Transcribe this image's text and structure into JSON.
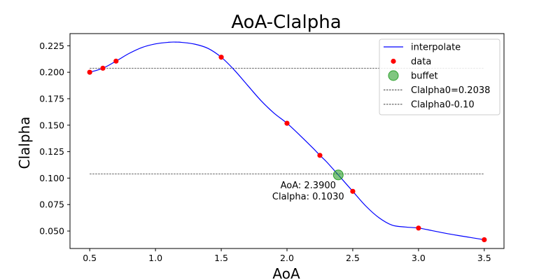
{
  "chart_data": {
    "type": "line",
    "title": "AoA-Clalpha",
    "xlabel": "AoA",
    "ylabel": "Clalpha",
    "xlim": [
      0.35,
      3.65
    ],
    "ylim": [
      0.0335,
      0.2365
    ],
    "x_ticks": [
      0.5,
      1.0,
      1.5,
      2.0,
      2.5,
      3.0,
      3.5
    ],
    "x_tick_labels": [
      "0.5",
      "1.0",
      "1.5",
      "2.0",
      "2.5",
      "3.0",
      "3.5"
    ],
    "y_ticks": [
      0.05,
      0.075,
      0.1,
      0.125,
      0.15,
      0.175,
      0.2,
      0.225
    ],
    "y_tick_labels": [
      "0.050",
      "0.075",
      "0.100",
      "0.125",
      "0.150",
      "0.175",
      "0.200",
      "0.225"
    ],
    "grid": false,
    "legend_position": "top-right",
    "series": [
      {
        "name": "interpolate",
        "kind": "line",
        "color": "#0000ff",
        "x": [
          0.5,
          0.6,
          0.7,
          0.8,
          0.9,
          1.0,
          1.1,
          1.15,
          1.2,
          1.3,
          1.4,
          1.5,
          1.6,
          1.7,
          1.8,
          1.9,
          2.0,
          2.1,
          2.2,
          2.25,
          2.3,
          2.39,
          2.5,
          2.6,
          2.7,
          2.8,
          2.9,
          3.0,
          3.1,
          3.2,
          3.3,
          3.4,
          3.5
        ],
        "y": [
          0.2,
          0.2038,
          0.2105,
          0.2178,
          0.2235,
          0.2268,
          0.2283,
          0.2285,
          0.2282,
          0.2265,
          0.2225,
          0.2142,
          0.202,
          0.1877,
          0.1735,
          0.1615,
          0.1518,
          0.1402,
          0.128,
          0.1215,
          0.1155,
          0.103,
          0.0875,
          0.0735,
          0.0625,
          0.0555,
          0.0538,
          0.0528,
          0.0505,
          0.048,
          0.0458,
          0.0438,
          0.0418
        ]
      },
      {
        "name": "data",
        "kind": "scatter",
        "color": "#ff0000",
        "x": [
          0.5,
          0.6,
          0.7,
          1.5,
          2.0,
          2.25,
          2.5,
          3.0,
          3.5
        ],
        "y": [
          0.2,
          0.2038,
          0.2105,
          0.2142,
          0.1518,
          0.1215,
          0.0875,
          0.0528,
          0.0418
        ]
      },
      {
        "name": "buffet",
        "kind": "marker",
        "color": "#2ca02c",
        "x": [
          2.39
        ],
        "y": [
          0.103
        ]
      },
      {
        "name": "Clalpha0=0.2038",
        "kind": "hline",
        "color": "#000000",
        "y": 0.2038,
        "x_range": [
          0.5,
          3.5
        ]
      },
      {
        "name": "Clalpha0-0.10",
        "kind": "hline",
        "color": "#000000",
        "y": 0.1038,
        "x_range": [
          0.5,
          3.5
        ]
      }
    ],
    "annotations": [
      {
        "lines": [
          "AoA: 2.3900",
          "Clalpha: 0.1030"
        ],
        "x": 2.39,
        "y": 0.103
      }
    ]
  }
}
